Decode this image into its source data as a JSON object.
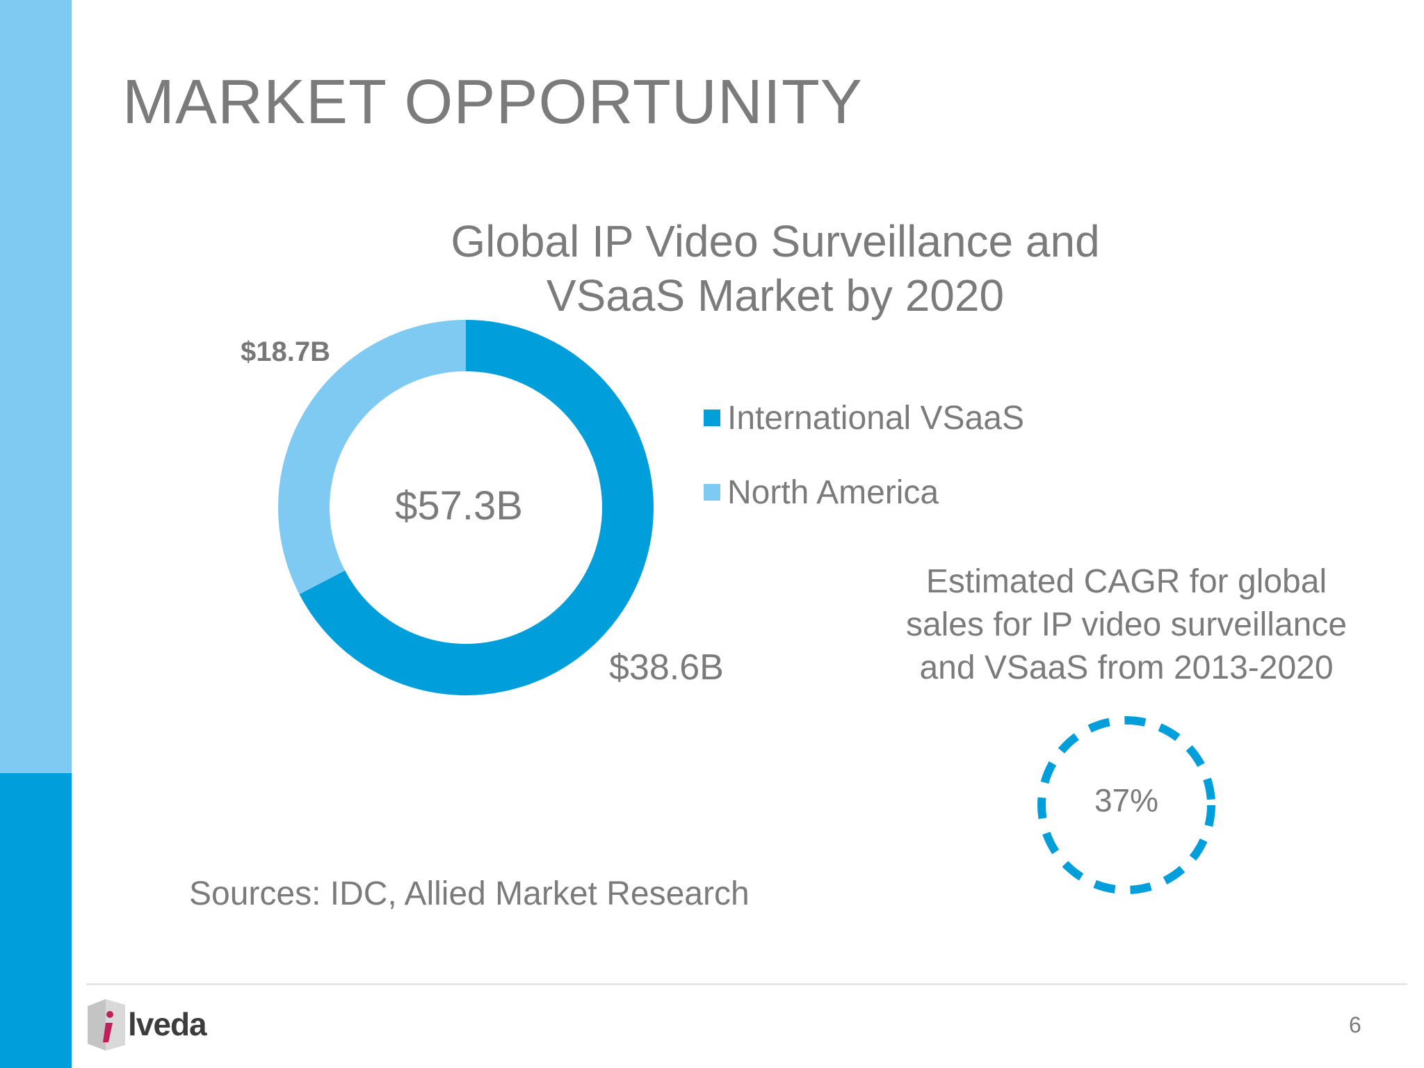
{
  "slide": {
    "title": "MARKET OPPORTUNITY",
    "sources": "Sources: IDC, Allied Market Research",
    "page_number": "6",
    "logo_text": "lveda"
  },
  "colors": {
    "light_bar": "#7fcaf3",
    "dark_bar": "#009edb",
    "international": "#009edb",
    "north_america": "#7fcaf3",
    "text": "#7b7b7b"
  },
  "chart_data": {
    "type": "pie",
    "title": "Global IP Video Surveillance and VSaaS Market by 2020",
    "total_label": "$57.3B",
    "slices": [
      {
        "name": "International VSaaS",
        "value": 38.6,
        "label": "$38.6B",
        "color": "#009edb"
      },
      {
        "name": "North America",
        "value": 18.7,
        "label": "$18.7B",
        "color": "#7fcaf3"
      }
    ],
    "legend": [
      "International VSaaS",
      "North America"
    ],
    "legend_position": "right"
  },
  "cagr": {
    "caption": "Estimated CAGR for global sales for IP video surveillance and VSaaS from 2013-2020",
    "value": "37%"
  }
}
